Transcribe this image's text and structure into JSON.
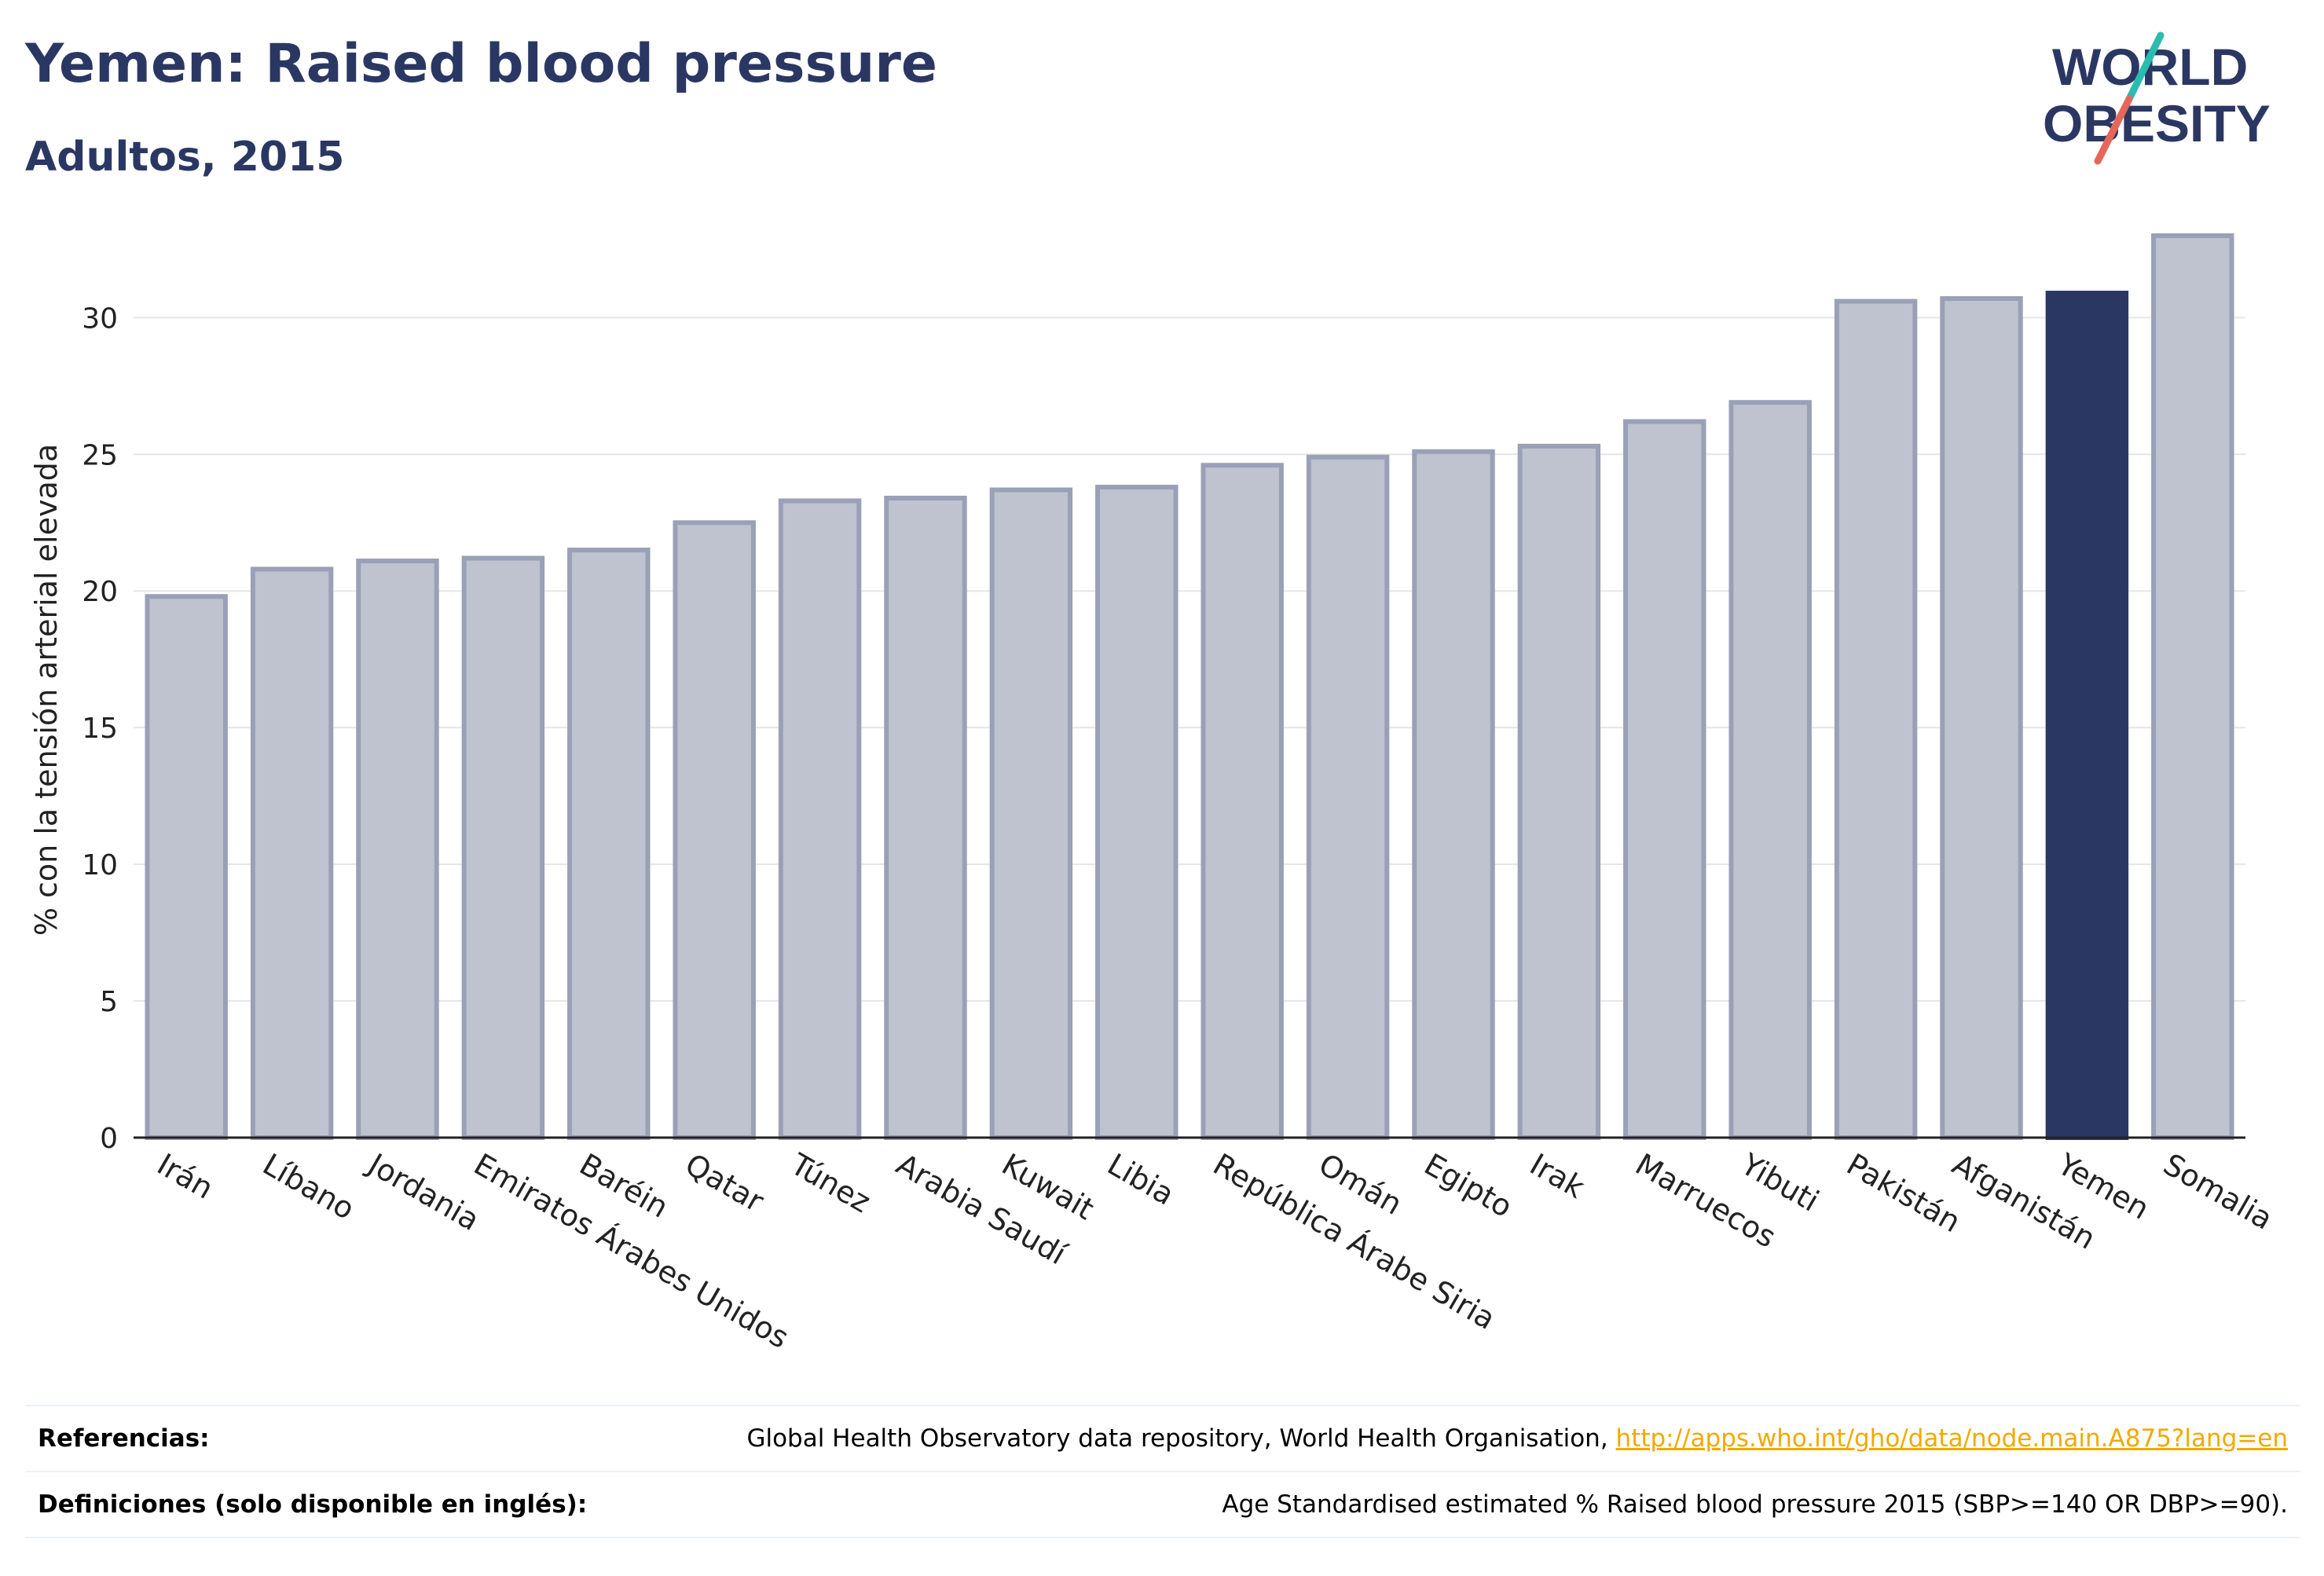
{
  "title": "Yemen: Raised blood pressure",
  "subtitle": "Adultos, 2015",
  "logo": {
    "line1": "WORLD",
    "line2": "OBESITY"
  },
  "colors": {
    "highlight": "#2b3763",
    "bar": "#bfc3cf",
    "bar_stroke": "#9aa0b6",
    "title": "#2b3763",
    "logo_teal": "#2bbcb0",
    "logo_red": "#e5675a",
    "link": "#f2a900"
  },
  "chart_data": {
    "type": "bar",
    "ylabel": "% con la tensión arterial elevada",
    "ylim": [
      0,
      33
    ],
    "yticks": [
      0,
      5,
      10,
      15,
      20,
      25,
      30
    ],
    "grid": true,
    "highlight": "Yemen",
    "categories": [
      "Irán",
      "Líbano",
      "Jordania",
      "Emiratos Árabes Unidos",
      "Baréin",
      "Qatar",
      "Túnez",
      "Arabia Saudí",
      "Kuwait",
      "Libia",
      "República Árabe Siria",
      "Omán",
      "Egipto",
      "Irak",
      "Marruecos",
      "Yibuti",
      "Pakistán",
      "Afganistán",
      "Yemen",
      "Somalia"
    ],
    "values": [
      19.8,
      20.8,
      21.1,
      21.2,
      21.5,
      22.5,
      23.3,
      23.4,
      23.7,
      23.8,
      24.6,
      24.9,
      25.1,
      25.3,
      26.2,
      26.9,
      30.6,
      30.7,
      30.9,
      33.0
    ]
  },
  "references": {
    "label": "Referencias:",
    "text": "Global Health Observatory data repository, World Health Organisation, ",
    "link": "http://apps.who.int/gho/data/node.main.A875?lang=en"
  },
  "definitions": {
    "label": "Definiciones (solo disponible en inglés):",
    "text": "Age Standardised estimated % Raised blood pressure 2015 (SBP>=140 OR DBP>=90)."
  }
}
